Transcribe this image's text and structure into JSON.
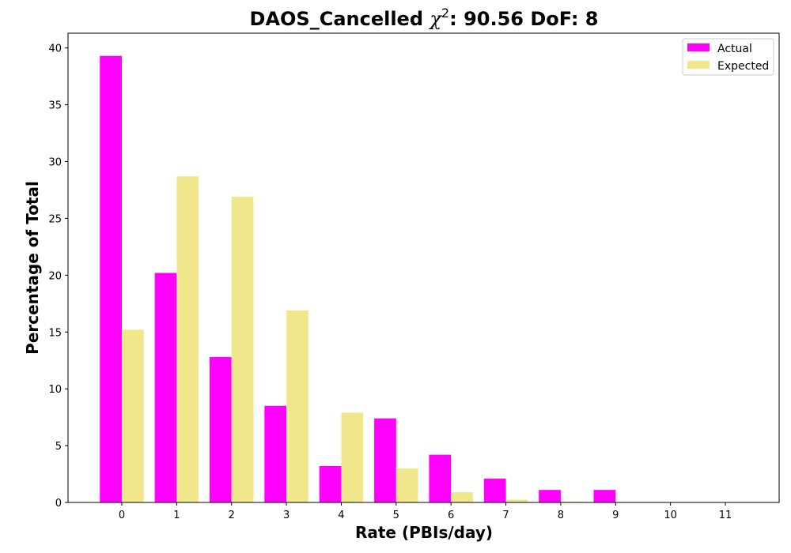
{
  "chart_data": {
    "type": "bar",
    "title_prefix": "DAOS_Cancelled ",
    "title_symbol": "χ",
    "title_superscript": "2",
    "title_suffix": ": 90.56 DoF: 8",
    "xlabel": "Rate (PBIs/day)",
    "ylabel": "Percentage of Total",
    "categories": [
      "0",
      "1",
      "2",
      "3",
      "4",
      "5",
      "6",
      "7",
      "8",
      "9",
      "10",
      "11"
    ],
    "ylim": [
      0,
      41.3
    ],
    "xlim": [
      -0.98,
      11.98
    ],
    "yticks": [
      0,
      5,
      10,
      15,
      20,
      25,
      30,
      35,
      40
    ],
    "legend_position": "top-right",
    "series": [
      {
        "name": "Actual",
        "color": "#ff00ff",
        "values": [
          39.3,
          20.2,
          12.8,
          8.5,
          3.2,
          7.4,
          4.2,
          2.1,
          1.1,
          1.1,
          0,
          0
        ]
      },
      {
        "name": "Expected",
        "color": "#f0e68c",
        "values": [
          15.2,
          28.7,
          26.9,
          16.9,
          7.9,
          3.0,
          0.9,
          0.25,
          0.06,
          0.01,
          0.0,
          0.0
        ]
      }
    ]
  }
}
